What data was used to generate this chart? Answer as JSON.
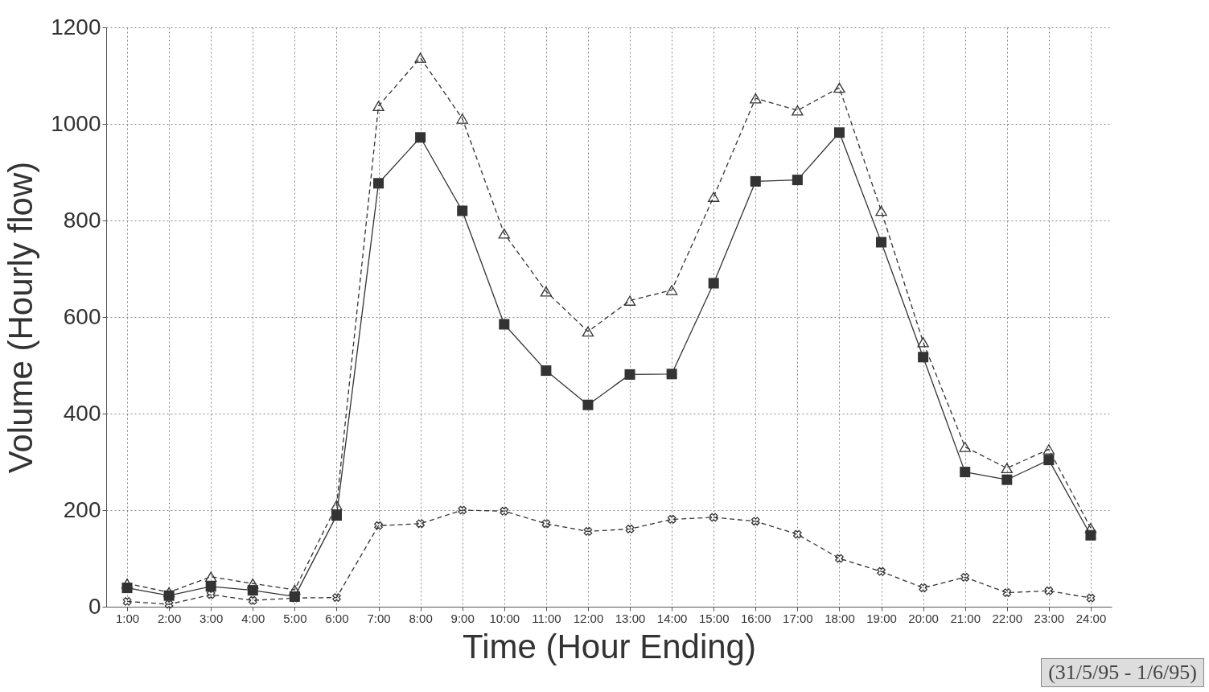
{
  "chart_data": {
    "type": "line",
    "xlabel": "Time (Hour Ending)",
    "ylabel": "Volume (Hourly flow)",
    "categories": [
      "1:00",
      "2:00",
      "3:00",
      "4:00",
      "5:00",
      "6:00",
      "7:00",
      "8:00",
      "9:00",
      "10:00",
      "11:00",
      "12:00",
      "13:00",
      "14:00",
      "15:00",
      "16:00",
      "17:00",
      "18:00",
      "19:00",
      "20:00",
      "21:00",
      "22:00",
      "23:00",
      "24:00"
    ],
    "series": [
      {
        "color": "#333333",
        "marker": "triangle",
        "line_style": "dashed",
        "values": [
          48,
          30,
          62,
          48,
          35,
          210,
          1037,
          1137,
          1011,
          773,
          653,
          570,
          634,
          656,
          849,
          1053,
          1028,
          1075,
          820,
          548,
          331,
          287,
          326,
          163
        ]
      },
      {
        "color": "#333333",
        "marker": "square",
        "line_style": "solid",
        "values": [
          39,
          23,
          42,
          34,
          21,
          189,
          877,
          972,
          820,
          585,
          489,
          418,
          481,
          482,
          670,
          881,
          884,
          982,
          755,
          517,
          279,
          263,
          304,
          148
        ]
      },
      {
        "color": "#333333",
        "marker": "cross",
        "line_style": "dashed",
        "values": [
          11,
          5,
          25,
          13,
          18,
          19,
          168,
          172,
          200,
          198,
          172,
          156,
          161,
          181,
          185,
          177,
          150,
          100,
          73,
          39,
          61,
          29,
          33,
          18
        ]
      }
    ],
    "ylim": [
      0,
      1200
    ],
    "yticks": [
      0,
      200,
      400,
      600,
      800,
      1000,
      1200
    ],
    "grid": true,
    "annotations": [
      "(31/5/95 - 1/6/95)"
    ]
  }
}
